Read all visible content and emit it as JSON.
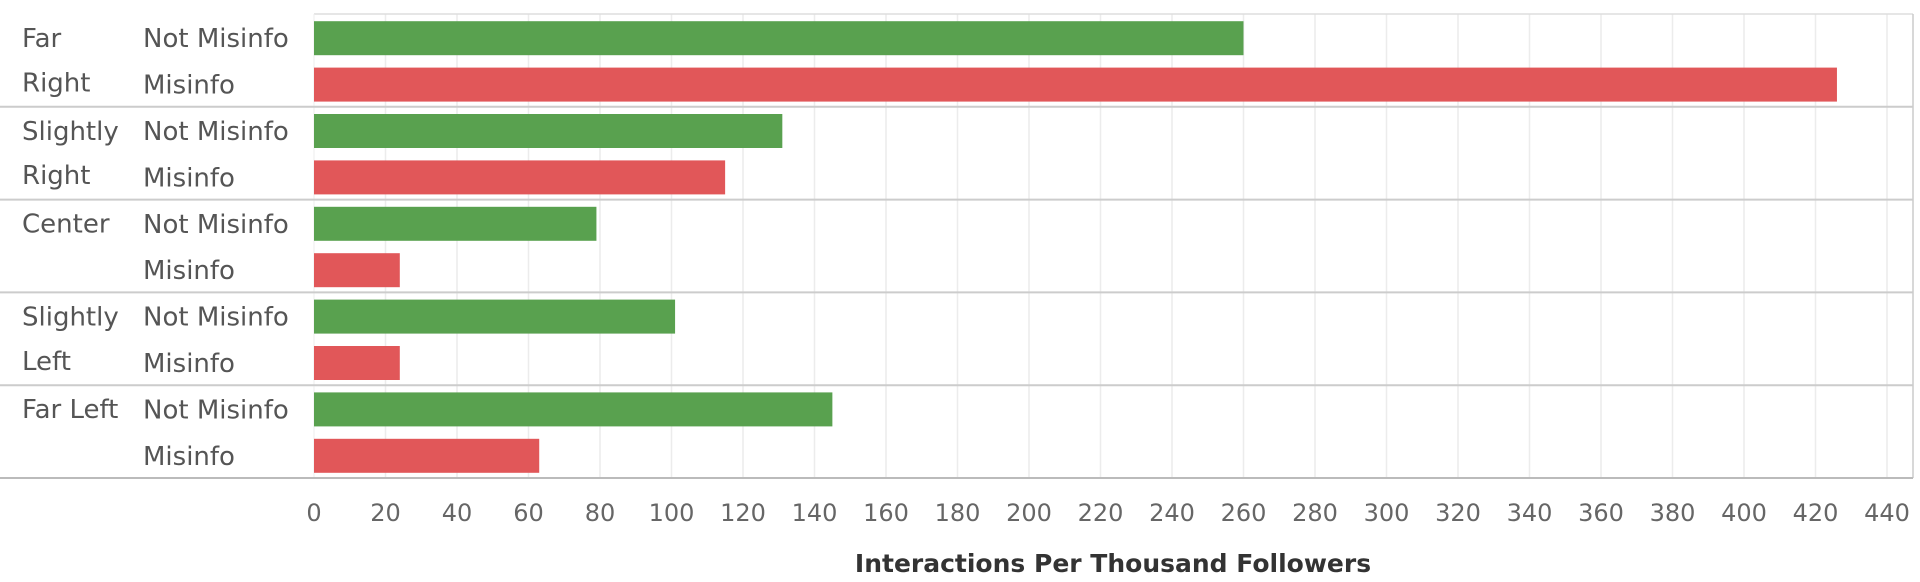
{
  "chart_data": {
    "type": "bar",
    "orientation": "horizontal",
    "xlabel": "Interactions Per Thousand Followers",
    "xlim": [
      0,
      440
    ],
    "xticks": [
      0,
      20,
      40,
      60,
      80,
      100,
      120,
      140,
      160,
      180,
      200,
      220,
      240,
      260,
      280,
      300,
      320,
      340,
      360,
      380,
      400,
      420,
      440
    ],
    "grid": true,
    "groups": [
      {
        "label": "Far Right",
        "rows": [
          {
            "label": "Not Misinfo",
            "value": 260
          },
          {
            "label": "Misinfo",
            "value": 426
          }
        ]
      },
      {
        "label": "Slightly Right",
        "rows": [
          {
            "label": "Not Misinfo",
            "value": 131
          },
          {
            "label": "Misinfo",
            "value": 115
          }
        ]
      },
      {
        "label": "Center",
        "rows": [
          {
            "label": "Not Misinfo",
            "value": 79
          },
          {
            "label": "Misinfo",
            "value": 24
          }
        ]
      },
      {
        "label": "Slightly Left",
        "rows": [
          {
            "label": "Not Misinfo",
            "value": 101
          },
          {
            "label": "Misinfo",
            "value": 24
          }
        ]
      },
      {
        "label": "Far Left",
        "rows": [
          {
            "label": "Not Misinfo",
            "value": 145
          },
          {
            "label": "Misinfo",
            "value": 63
          }
        ]
      }
    ],
    "colors": {
      "Not Misinfo": "#59a14f",
      "Misinfo": "#e15759"
    }
  }
}
